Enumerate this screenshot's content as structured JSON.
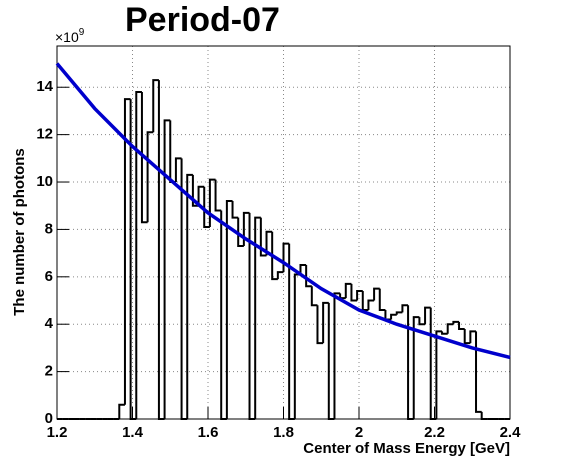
{
  "chart_data": {
    "type": "histogram",
    "title": "Period-07",
    "x_label": "Center of Mass Energy [GeV]",
    "y_label": "The number of photons",
    "y_multiplier": {
      "base": "×10",
      "exponent": "9"
    },
    "bins": [
      1.2,
      1.215,
      1.23,
      1.245,
      1.26,
      1.275,
      1.29,
      1.305,
      1.32,
      1.335,
      1.35,
      1.365,
      1.38,
      1.395,
      1.41,
      1.425,
      1.44,
      1.455,
      1.47,
      1.485,
      1.5,
      1.515,
      1.53,
      1.545,
      1.56,
      1.575,
      1.59,
      1.605,
      1.62,
      1.635,
      1.65,
      1.665,
      1.68,
      1.695,
      1.71,
      1.725,
      1.74,
      1.755,
      1.77,
      1.785,
      1.8,
      1.815,
      1.83,
      1.845,
      1.86,
      1.875,
      1.89,
      1.905,
      1.92,
      1.935,
      1.95,
      1.965,
      1.98,
      1.995,
      2.01,
      2.025,
      2.04,
      2.055,
      2.07,
      2.085,
      2.1,
      2.115,
      2.13,
      2.145,
      2.16,
      2.175,
      2.19,
      2.205,
      2.22,
      2.235,
      2.25,
      2.265,
      2.28,
      2.295,
      2.31,
      2.325,
      2.34,
      2.355,
      2.37,
      2.385,
      2.4
    ],
    "values": [
      0,
      0,
      0,
      0,
      0,
      0,
      0,
      0,
      0,
      0,
      0,
      0.6,
      13.5,
      0,
      13.8,
      8.3,
      12.1,
      14.3,
      0,
      12.6,
      10.0,
      11.0,
      0,
      10.3,
      9.0,
      9.8,
      8.1,
      10.1,
      8.8,
      0,
      9.2,
      8.5,
      7.3,
      8.7,
      0,
      8.5,
      6.9,
      7.9,
      5.9,
      6.2,
      7.4,
      0,
      6.1,
      6.5,
      5.6,
      4.8,
      3.2,
      4.9,
      0,
      5.3,
      5.1,
      5.7,
      5.0,
      5.4,
      4.6,
      5.0,
      5.5,
      4.6,
      4.2,
      4.4,
      4.5,
      4.8,
      0,
      4.3,
      4.0,
      4.7,
      0,
      3.7,
      3.6,
      4.0,
      4.1,
      3.8,
      3.2,
      3.7,
      0.3,
      0,
      0,
      0,
      0,
      0
    ],
    "color": "#000000",
    "fit": {
      "color": "#0000cc",
      "x": [
        1.2,
        1.3,
        1.4,
        1.5,
        1.6,
        1.7,
        1.8,
        1.9,
        2.0,
        2.1,
        2.2,
        2.3,
        2.4
      ],
      "values": [
        15.0,
        13.1,
        11.5,
        10.1,
        8.7,
        7.6,
        6.6,
        5.5,
        4.6,
        4.0,
        3.5,
        3.0,
        2.6
      ]
    },
    "xlim": [
      1.2,
      2.4
    ],
    "xticks": [
      1.2,
      1.4,
      1.6,
      1.8,
      2,
      2.2,
      2.4
    ],
    "ylim": [
      0,
      15.74
    ],
    "yticks": [
      0,
      2,
      4,
      6,
      8,
      10,
      12,
      14
    ],
    "grid": true
  }
}
